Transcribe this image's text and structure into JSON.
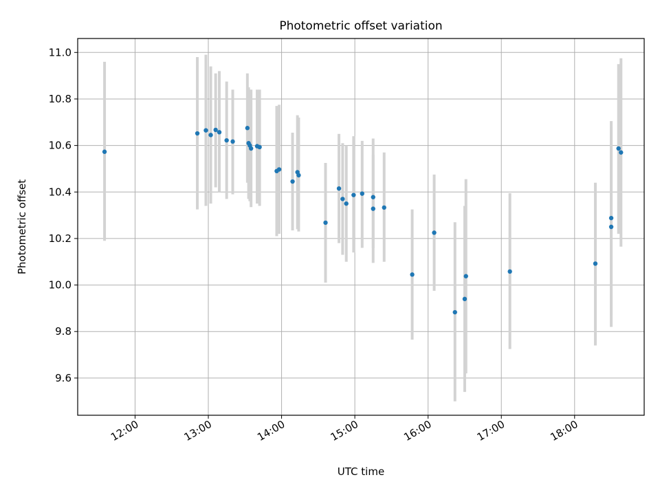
{
  "chart_data": {
    "type": "scatter",
    "title": "Photometric offset variation",
    "xlabel": "UTC time",
    "ylabel": "Photometric offset",
    "x_axis_type": "time",
    "xlim": [
      "11:13",
      "18:57"
    ],
    "ylim": [
      9.44,
      11.06
    ],
    "grid": true,
    "colors": {
      "points": "#1f77b4",
      "errorbars": "#d3d3d3",
      "grid": "#b0b0b0",
      "axes": "#000000"
    },
    "xticks": [
      "12:00",
      "13:00",
      "14:00",
      "15:00",
      "16:00",
      "17:00",
      "18:00"
    ],
    "yticks": [
      "9.6",
      "9.8",
      "10.0",
      "10.2",
      "10.4",
      "10.6",
      "10.8",
      "11.0"
    ],
    "points": [
      {
        "x": "11:35",
        "y": 10.573,
        "ylow": 10.19,
        "yhigh": 10.96
      },
      {
        "x": "12:51",
        "y": 10.652,
        "ylow": 10.325,
        "yhigh": 10.98
      },
      {
        "x": "12:58",
        "y": 10.665,
        "ylow": 10.34,
        "yhigh": 10.99
      },
      {
        "x": "13:02",
        "y": 10.645,
        "ylow": 10.35,
        "yhigh": 10.94
      },
      {
        "x": "13:06",
        "y": 10.667,
        "ylow": 10.42,
        "yhigh": 10.91
      },
      {
        "x": "13:09",
        "y": 10.657,
        "ylow": 10.4,
        "yhigh": 10.92
      },
      {
        "x": "13:15",
        "y": 10.622,
        "ylow": 10.37,
        "yhigh": 10.875
      },
      {
        "x": "13:20",
        "y": 10.617,
        "ylow": 10.39,
        "yhigh": 10.84
      },
      {
        "x": "13:32",
        "y": 10.675,
        "ylow": 10.44,
        "yhigh": 10.91
      },
      {
        "x": "13:33",
        "y": 10.61,
        "ylow": 10.37,
        "yhigh": 10.85
      },
      {
        "x": "13:34",
        "y": 10.6,
        "ylow": 10.36,
        "yhigh": 10.84
      },
      {
        "x": "13:35",
        "y": 10.587,
        "ylow": 10.335,
        "yhigh": 10.84
      },
      {
        "x": "13:40",
        "y": 10.597,
        "ylow": 10.35,
        "yhigh": 10.84
      },
      {
        "x": "13:42",
        "y": 10.593,
        "ylow": 10.34,
        "yhigh": 10.84
      },
      {
        "x": "13:56",
        "y": 10.49,
        "ylow": 10.21,
        "yhigh": 10.77
      },
      {
        "x": "13:58",
        "y": 10.497,
        "ylow": 10.22,
        "yhigh": 10.775
      },
      {
        "x": "14:09",
        "y": 10.445,
        "ylow": 10.235,
        "yhigh": 10.655
      },
      {
        "x": "14:13",
        "y": 10.485,
        "ylow": 10.24,
        "yhigh": 10.73
      },
      {
        "x": "14:14",
        "y": 10.472,
        "ylow": 10.23,
        "yhigh": 10.72
      },
      {
        "x": "14:36",
        "y": 10.268,
        "ylow": 10.01,
        "yhigh": 10.525
      },
      {
        "x": "14:47",
        "y": 10.415,
        "ylow": 10.18,
        "yhigh": 10.65
      },
      {
        "x": "14:50",
        "y": 10.37,
        "ylow": 10.13,
        "yhigh": 10.61
      },
      {
        "x": "14:53",
        "y": 10.35,
        "ylow": 10.1,
        "yhigh": 10.6
      },
      {
        "x": "14:59",
        "y": 10.387,
        "ylow": 10.14,
        "yhigh": 10.64
      },
      {
        "x": "15:06",
        "y": 10.393,
        "ylow": 10.16,
        "yhigh": 10.62
      },
      {
        "x": "15:15",
        "y": 10.378,
        "ylow": 10.16,
        "yhigh": 10.63
      },
      {
        "x": "15:15",
        "y": 10.328,
        "ylow": 10.095,
        "yhigh": 10.56
      },
      {
        "x": "15:24",
        "y": 10.333,
        "ylow": 10.1,
        "yhigh": 10.57
      },
      {
        "x": "15:47",
        "y": 10.045,
        "ylow": 9.765,
        "yhigh": 10.325
      },
      {
        "x": "16:05",
        "y": 10.225,
        "ylow": 9.975,
        "yhigh": 10.475
      },
      {
        "x": "16:22",
        "y": 9.883,
        "ylow": 9.5,
        "yhigh": 10.27
      },
      {
        "x": "16:30",
        "y": 9.94,
        "ylow": 9.54,
        "yhigh": 10.34
      },
      {
        "x": "16:31",
        "y": 10.038,
        "ylow": 9.62,
        "yhigh": 10.455
      },
      {
        "x": "17:07",
        "y": 10.058,
        "ylow": 9.725,
        "yhigh": 10.395
      },
      {
        "x": "18:17",
        "y": 10.092,
        "ylow": 9.74,
        "yhigh": 10.44
      },
      {
        "x": "18:30",
        "y": 10.288,
        "ylow": 9.87,
        "yhigh": 10.705
      },
      {
        "x": "18:30",
        "y": 10.25,
        "ylow": 9.82,
        "yhigh": 10.68
      },
      {
        "x": "18:36",
        "y": 10.587,
        "ylow": 10.22,
        "yhigh": 10.95
      },
      {
        "x": "18:38",
        "y": 10.57,
        "ylow": 10.165,
        "yhigh": 10.975
      }
    ]
  }
}
